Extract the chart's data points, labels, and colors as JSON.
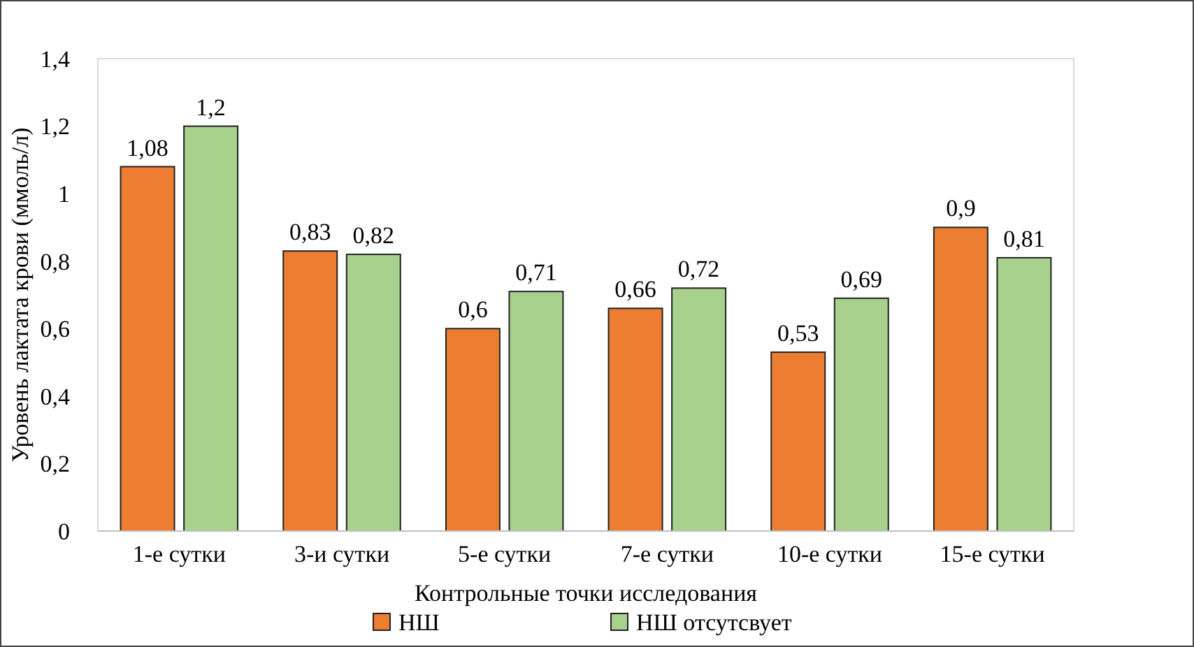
{
  "chart_data": {
    "type": "bar",
    "xlabel": "Контрольные точки исследования",
    "ylabel": "Уровень лактата крови (ммоль/л)",
    "categories": [
      "1-е сутки",
      "3-и сутки",
      "5-е сутки",
      "7-е сутки",
      "10-е сутки",
      "15-е сутки"
    ],
    "series": [
      {
        "name": "НШ",
        "color": "#ed7d31",
        "values": [
          1.08,
          0.83,
          0.6,
          0.66,
          0.53,
          0.9
        ],
        "value_labels": [
          "1,08",
          "0,83",
          "0,6",
          "0,66",
          "0,53",
          "0,9"
        ]
      },
      {
        "name": "НШ отсутсвует",
        "color": "#a9d18e",
        "values": [
          1.2,
          0.82,
          0.71,
          0.72,
          0.69,
          0.81
        ],
        "value_labels": [
          "1,2",
          "0,82",
          "0,71",
          "0,72",
          "0,69",
          "0,81"
        ]
      }
    ],
    "ylim": [
      0,
      1.4
    ],
    "yticks": [
      0,
      {
        "value": 0.2,
        "label": "0,2"
      },
      {
        "value": 0.4,
        "label": "0,4"
      },
      {
        "value": 0.6,
        "label": "0,6"
      },
      {
        "value": 0.8,
        "label": "0,8"
      },
      1,
      {
        "value": 1.2,
        "label": "1,2"
      },
      {
        "value": 1.4,
        "label": "1,4"
      }
    ],
    "grid": false,
    "legend": "bottom"
  }
}
